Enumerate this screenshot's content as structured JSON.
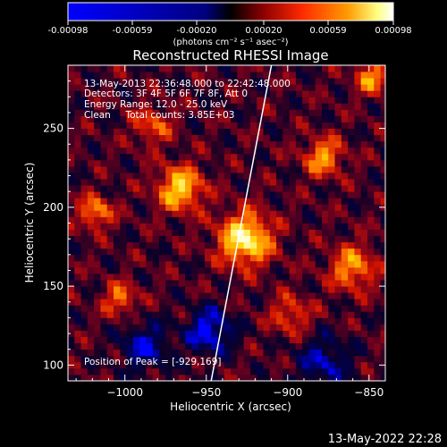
{
  "colorbar": {
    "ticks": [
      "-0.00098",
      "-0.00059",
      "-0.00020",
      "0.00020",
      "0.00059",
      "0.00098"
    ],
    "units": "(photons cm⁻² s⁻¹ asec⁻²)"
  },
  "chart_data": {
    "type": "heatmap",
    "title": "Reconstructed RHESSI Image",
    "xlabel": "Heliocentric X (arcsec)",
    "ylabel": "Heliocentric Y (arcsec)",
    "xlim": [
      -1035,
      -840
    ],
    "ylim": [
      90,
      290
    ],
    "xticks": [
      -1000,
      -950,
      -900,
      -850
    ],
    "xtick_labels": [
      "−1000",
      "−950",
      "−900",
      "−850"
    ],
    "yticks": [
      100,
      150,
      200,
      250
    ],
    "ytick_labels": [
      "100",
      "150",
      "200",
      "250"
    ],
    "clim": [
      -0.00098,
      0.00098
    ],
    "info_lines": [
      "13-May-2013 22:36:48.000 to 22:42:48.000",
      "Detectors: 3F 4F 5F 6F 7F 8F, Att 0",
      "Energy Range: 12.0 - 25.0 keV",
      "Clean     Total counts: 3.85E+03"
    ],
    "peak_label": "Position of Peak = [-929,169]",
    "peak": [
      -929,
      169
    ],
    "limb_line": [
      [
        -947,
        90
      ],
      [
        -910,
        290
      ]
    ],
    "palette": [
      "#0000ff",
      "#000000",
      "#8b0000",
      "#ff2a00",
      "#ff9b00",
      "#ffff80",
      "#ffffff"
    ]
  },
  "footer": {
    "timestamp": "13-May-2022 22:28"
  }
}
